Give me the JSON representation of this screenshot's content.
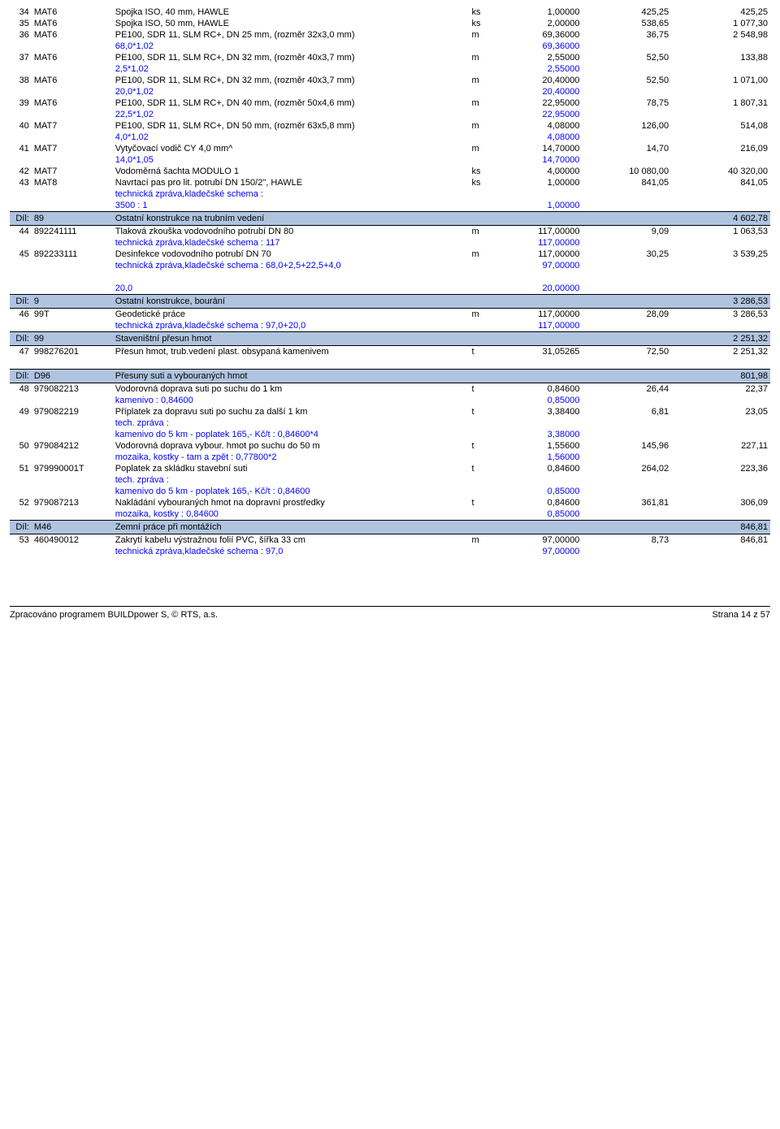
{
  "colors": {
    "blue": "#0000ff",
    "section_bg": "#b0c4e0"
  },
  "rows": [
    {
      "n": "34",
      "code": "MAT6",
      "desc": "Spojka ISO, 40 mm, HAWLE",
      "unit": "ks",
      "qty": "1,00000",
      "price": "425,25",
      "total": "425,25"
    },
    {
      "n": "35",
      "code": "MAT6",
      "desc": "Spojka ISO, 50 mm, HAWLE",
      "unit": "ks",
      "qty": "2,00000",
      "price": "538,65",
      "total": "1 077,30"
    },
    {
      "n": "36",
      "code": "MAT6",
      "desc": "PE100, SDR 11, SLM RC+, DN 25 mm, (rozměr 32x3,0 mm)",
      "unit": "m",
      "qty": "69,36000",
      "price": "36,75",
      "total": "2 548,98"
    },
    {
      "calc": true,
      "desc": "68,0*1,02",
      "qty": "69,36000"
    },
    {
      "n": "37",
      "code": "MAT6",
      "desc": "PE100, SDR 11, SLM RC+, DN 32 mm, (rozměr 40x3,7 mm)",
      "unit": "m",
      "qty": "2,55000",
      "price": "52,50",
      "total": "133,88"
    },
    {
      "calc": true,
      "desc": "2,5*1,02",
      "qty": "2,55000"
    },
    {
      "n": "38",
      "code": "MAT6",
      "desc": "PE100, SDR 11, SLM RC+, DN 32 mm, (rozměr 40x3,7 mm)",
      "unit": "m",
      "qty": "20,40000",
      "price": "52,50",
      "total": "1 071,00"
    },
    {
      "calc": true,
      "desc": "20,0*1,02",
      "qty": "20,40000"
    },
    {
      "n": "39",
      "code": "MAT6",
      "desc": "PE100, SDR 11, SLM RC+, DN 40 mm, (rozměr 50x4,6 mm)",
      "unit": "m",
      "qty": "22,95000",
      "price": "78,75",
      "total": "1 807,31"
    },
    {
      "calc": true,
      "desc": "22,5*1,02",
      "qty": "22,95000"
    },
    {
      "n": "40",
      "code": "MAT7",
      "desc": "PE100, SDR 11, SLM RC+, DN 50 mm, (rozměr 63x5,8 mm)",
      "unit": "m",
      "qty": "4,08000",
      "price": "126,00",
      "total": "514,08"
    },
    {
      "calc": true,
      "desc": "4,0*1,02",
      "qty": "4,08000"
    },
    {
      "n": "41",
      "code": "MAT7",
      "desc": "Vytyčovací vodič CY 4,0 mm^",
      "unit": "m",
      "qty": "14,70000",
      "price": "14,70",
      "total": "216,09"
    },
    {
      "calc": true,
      "desc": "14,0*1,05",
      "qty": "14,70000"
    },
    {
      "n": "42",
      "code": "MAT7",
      "desc": "Vodoměrná šachta MODULO 1",
      "unit": "ks",
      "qty": "4,00000",
      "price": "10 080,00",
      "total": "40 320,00"
    },
    {
      "n": "43",
      "code": "MAT8",
      "desc": "Navrtací pas pro lit. potrubí DN 150/2\", HAWLE",
      "unit": "ks",
      "qty": "1,00000",
      "price": "841,05",
      "total": "841,05"
    },
    {
      "calc": true,
      "desc": "technická zpráva,kladečské schema  :"
    },
    {
      "calc": true,
      "desc": "3500  :  1",
      "qty": "1,00000"
    },
    {
      "section": true,
      "code": "89",
      "desc": "Ostatní konstrukce na trubním vedení",
      "total": "4 602,78"
    },
    {
      "n": "44",
      "code": "892241111",
      "desc": "Tlaková zkouška vodovodního potrubí DN 80",
      "unit": "m",
      "qty": "117,00000",
      "price": "9,09",
      "total": "1 063,53"
    },
    {
      "calc": true,
      "desc": "technická zpráva,kladečské schema  :  117",
      "qty": "117,00000"
    },
    {
      "n": "45",
      "code": "892233111",
      "desc": "Desinfekce vodovodního potrubí DN 70",
      "unit": "m",
      "qty": "117,00000",
      "price": "30,25",
      "total": "3 539,25"
    },
    {
      "calc": true,
      "desc": "technická zpráva,kladečské schema  :  68,0+2,5+22,5+4,0",
      "qty": "97,00000"
    },
    {
      "spacer": true
    },
    {
      "calc": true,
      "desc": "20,0",
      "qty": "20,00000"
    },
    {
      "section": true,
      "code": "9",
      "desc": "Ostatní konstrukce, bourání",
      "total": "3 286,53"
    },
    {
      "n": "46",
      "code": "99T",
      "desc": "Geodetické práce",
      "unit": "m",
      "qty": "117,00000",
      "price": "28,09",
      "total": "3 286,53"
    },
    {
      "calc": true,
      "desc": "technická zpráva,kladečské schema  :  97,0+20,0",
      "qty": "117,00000"
    },
    {
      "section": true,
      "code": "99",
      "desc": "Staveništní přesun hmot",
      "total": "2 251,32"
    },
    {
      "n": "47",
      "code": "998276201",
      "desc": "Přesun hmot, trub.vedení plast. obsypaná kamenivem",
      "unit": "t",
      "qty": "31,05265",
      "price": "72,50",
      "total": "2 251,32"
    },
    {
      "spacer": true
    },
    {
      "section": true,
      "code": "D96",
      "desc": "Přesuny suti a vybouraných hmot",
      "total": "801,98"
    },
    {
      "n": "48",
      "code": "979082213",
      "desc": "Vodorovná doprava suti po suchu do 1 km",
      "unit": "t",
      "qty": "0,84600",
      "price": "26,44",
      "total": "22,37"
    },
    {
      "calc": true,
      "desc": "kamenivo  :  0,84600",
      "qty": "0,85000"
    },
    {
      "n": "49",
      "code": "979082219",
      "desc": "Příplatek za dopravu suti po suchu za další 1 km",
      "unit": "t",
      "qty": "3,38400",
      "price": "6,81",
      "total": "23,05"
    },
    {
      "calc": true,
      "desc": "tech. zpráva   :"
    },
    {
      "calc": true,
      "desc": "kamenivo do 5 km - poplatek 165,- Kč/t  :  0,84600*4",
      "qty": "3,38000"
    },
    {
      "n": "50",
      "code": "979084212",
      "desc": "Vodorovná doprava vybour. hmot po suchu do 50 m",
      "unit": "t",
      "qty": "1,55600",
      "price": "145,96",
      "total": "227,11"
    },
    {
      "calc": true,
      "desc": "mozaika, kostky - tam a zpět  :  0,77800*2",
      "qty": "1,56000"
    },
    {
      "n": "51",
      "code": "979990001T",
      "desc": "Poplatek za skládku stavební suti",
      "unit": "t",
      "qty": "0,84600",
      "price": "264,02",
      "total": "223,36"
    },
    {
      "calc": true,
      "desc": "tech. zpráva   :"
    },
    {
      "calc": true,
      "desc": "kamenivo do 5 km - poplatek 165,- Kč/t  :  0,84600",
      "qty": "0,85000"
    },
    {
      "n": "52",
      "code": "979087213",
      "desc": "Nakládání vybouraných hmot na dopravní prostředky",
      "unit": "t",
      "qty": "0,84600",
      "price": "361,81",
      "total": "306,09"
    },
    {
      "calc": true,
      "desc": "mozaika, kostky  :  0,84600",
      "qty": "0,85000"
    },
    {
      "section": true,
      "code": "M46",
      "desc": "Zemní práce při montážích",
      "total": "846,81"
    },
    {
      "n": "53",
      "code": "460490012",
      "desc": "Zakrytí kabelu výstražnou folií PVC, šířka 33 cm",
      "unit": "m",
      "qty": "97,00000",
      "price": "8,73",
      "total": "846,81"
    },
    {
      "calc": true,
      "desc": "technická zpráva,kladečské schema  :  97,0",
      "qty": "97,00000"
    }
  ],
  "dil_label": "Díl:",
  "footer_left": "Zpracováno programem BUILDpower S,  © RTS, a.s.",
  "footer_right": "Strana 14 z 57"
}
